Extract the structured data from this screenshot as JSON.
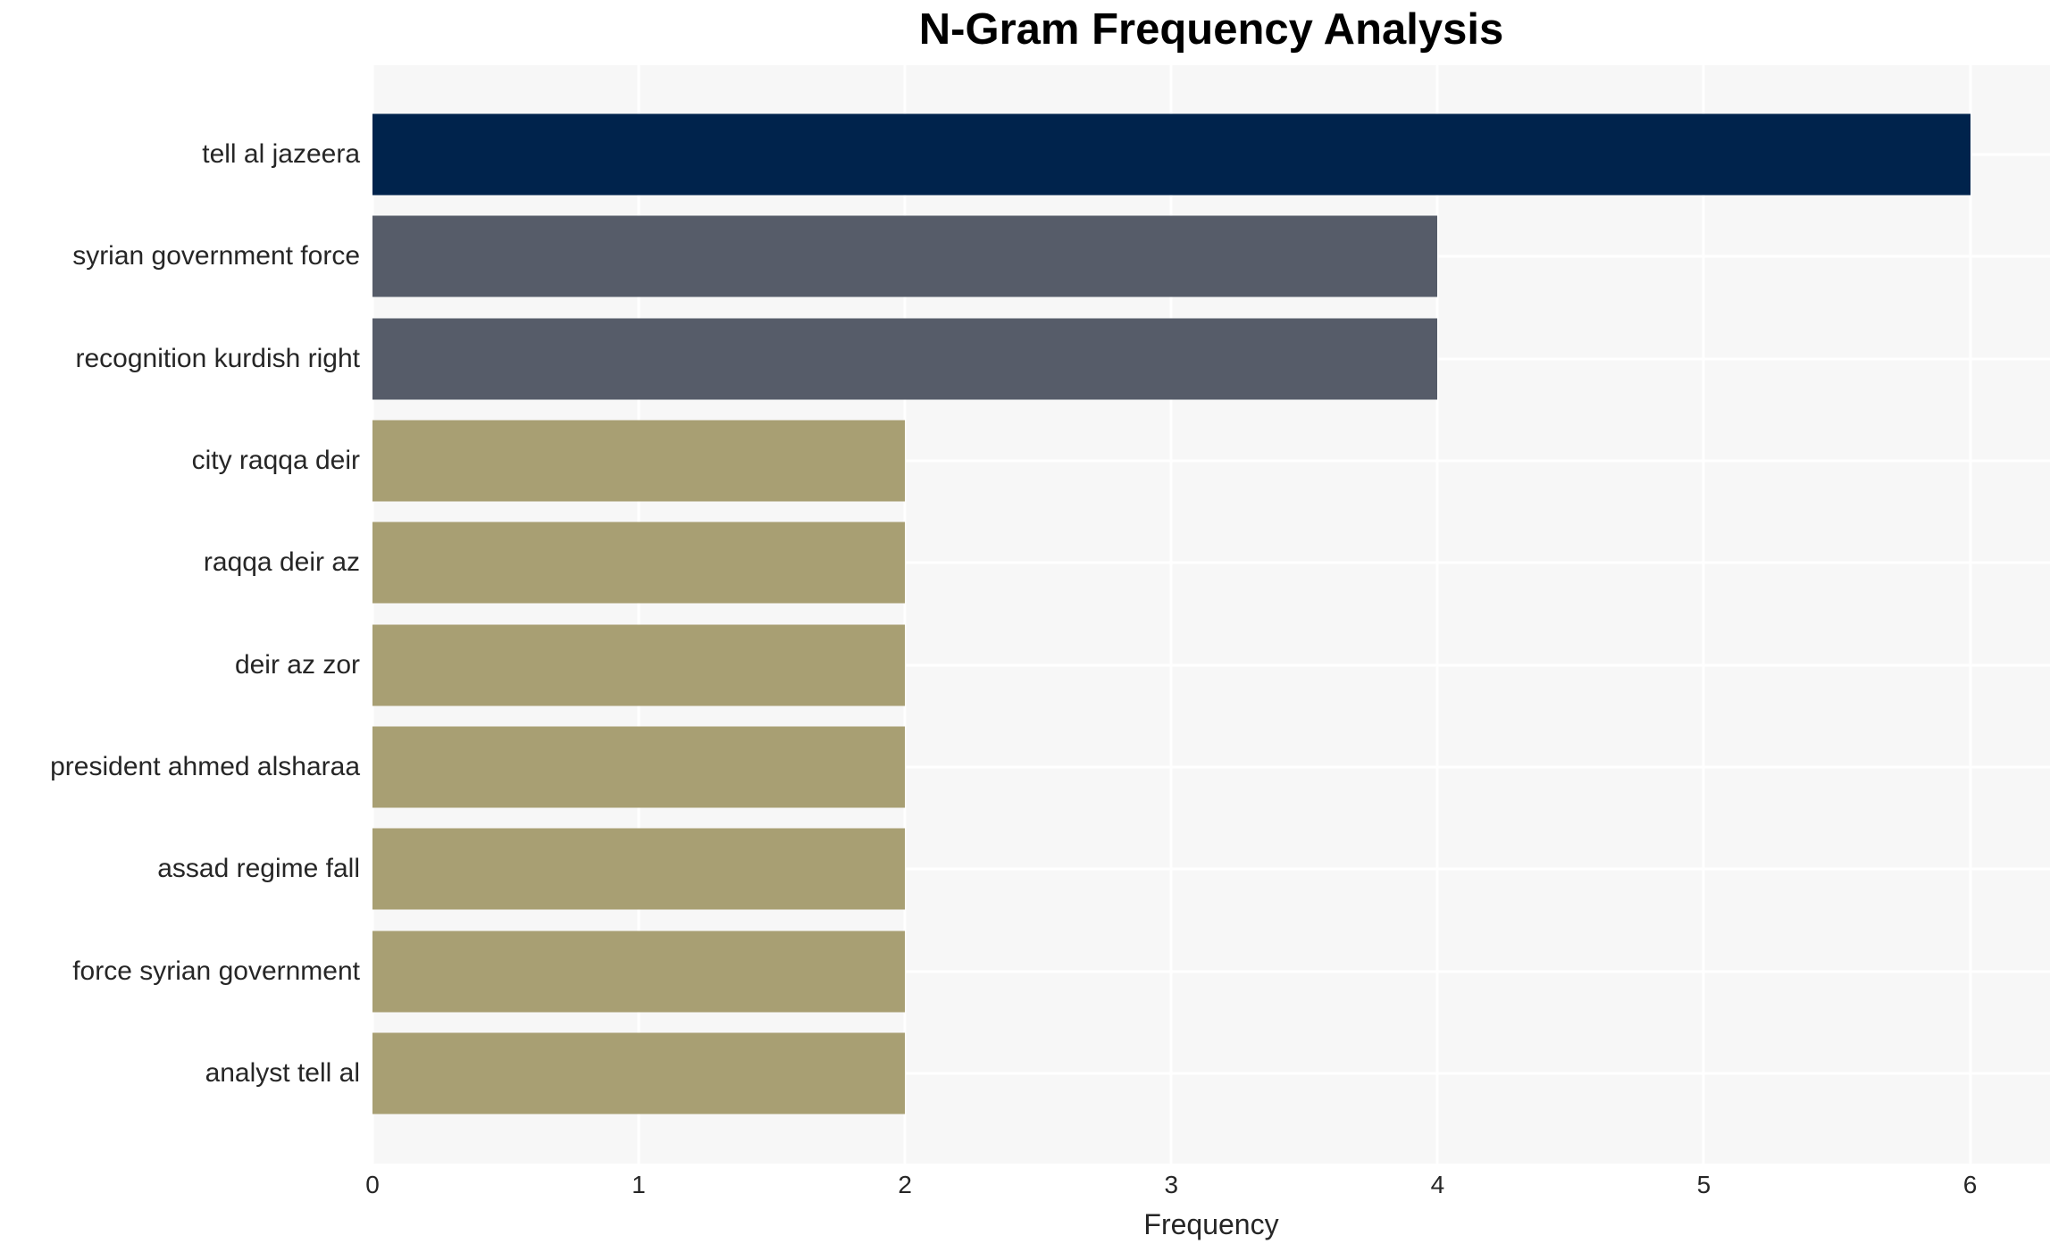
{
  "chart_data": {
    "type": "bar",
    "orientation": "horizontal",
    "title": "N-Gram Frequency Analysis",
    "xlabel": "Frequency",
    "ylabel": "",
    "categories": [
      "tell al jazeera",
      "syrian government force",
      "recognition kurdish right",
      "city raqqa deir",
      "raqqa deir az",
      "deir az zor",
      "president ahmed alsharaa",
      "assad regime fall",
      "force syrian government",
      "analyst tell al"
    ],
    "values": [
      6,
      4,
      4,
      2,
      2,
      2,
      2,
      2,
      2,
      2
    ],
    "bar_colors": [
      "#00234c",
      "#565c69",
      "#565c69",
      "#a89f73",
      "#a89f73",
      "#a89f73",
      "#a89f73",
      "#a89f73",
      "#a89f73",
      "#a89f73"
    ],
    "xticks": [
      0,
      1,
      2,
      3,
      4,
      5,
      6
    ],
    "xlim": [
      0,
      6.3
    ],
    "grid": true,
    "legend": false,
    "panel_bg": "#f7f7f7",
    "grid_color": "#ffffff",
    "text_color": "#262626",
    "title_color": "#000000"
  }
}
